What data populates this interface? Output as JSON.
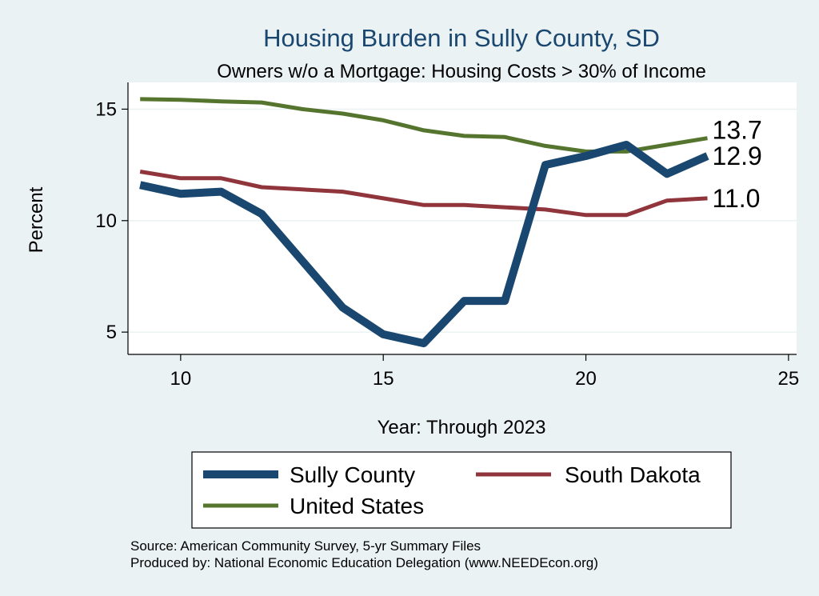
{
  "colors": {
    "background": "#eaf2f3",
    "plot_background": "#ffffff",
    "grid": "#eaf2f3",
    "title": "#1a476f",
    "sully": "#1a476f",
    "south_dakota": "#90353b",
    "united_states": "#55752f"
  },
  "chart_data": {
    "type": "line",
    "title": "Housing Burden in Sully County, SD",
    "subtitle": "Owners w/o a Mortgage: Housing Costs > 30% of Income",
    "xlabel": "Year: Through 2023",
    "ylabel": "Percent",
    "xlim": [
      8.7,
      25.2
    ],
    "ylim": [
      4.0,
      16.2
    ],
    "xticks": [
      10,
      15,
      20,
      25
    ],
    "yticks": [
      5,
      10,
      15
    ],
    "grid": true,
    "legend_position": "bottom",
    "x": [
      9,
      10,
      11,
      12,
      13,
      14,
      15,
      16,
      17,
      18,
      19,
      20,
      21,
      22,
      23
    ],
    "series": [
      {
        "name": "Sully County",
        "color": "#1a476f",
        "values": [
          11.6,
          11.2,
          11.3,
          10.3,
          8.2,
          6.1,
          4.9,
          4.5,
          6.4,
          6.4,
          12.5,
          12.9,
          13.4,
          12.1,
          12.9
        ],
        "end_label": "12.9"
      },
      {
        "name": "South Dakota",
        "color": "#90353b",
        "values": [
          12.2,
          11.9,
          11.9,
          11.5,
          11.4,
          11.3,
          11.0,
          10.7,
          10.7,
          10.6,
          10.5,
          10.25,
          10.25,
          10.9,
          11.0
        ],
        "end_label": "11.0"
      },
      {
        "name": "United States",
        "color": "#55752f",
        "values": [
          15.45,
          15.42,
          15.35,
          15.3,
          15.0,
          14.8,
          14.5,
          14.05,
          13.8,
          13.75,
          13.35,
          13.1,
          13.1,
          13.4,
          13.7
        ],
        "end_label": "13.7"
      }
    ]
  },
  "footer": {
    "source": "Source: American Community Survey, 5-yr Summary Files",
    "produced_by": "Produced by: National Economic Education Delegation (www.NEEDEcon.org)"
  }
}
